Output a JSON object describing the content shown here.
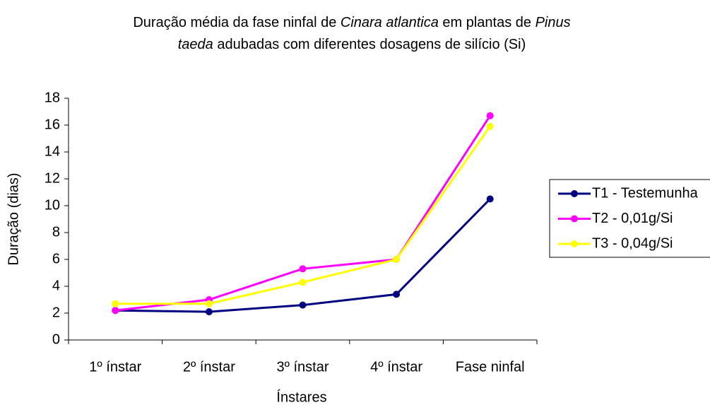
{
  "chart_data": {
    "type": "line",
    "title": [
      [
        {
          "text": "Duração média da fase ninfal de ",
          "italic": false
        },
        {
          "text": "Cinara atlantica",
          "italic": true
        },
        {
          "text": " em plantas de ",
          "italic": false
        },
        {
          "text": "Pinus",
          "italic": true
        }
      ],
      [
        {
          "text": "taeda",
          "italic": true
        },
        {
          "text": " adubadas com diferentes dosagens de silício (Si)",
          "italic": false
        }
      ]
    ],
    "x_label": "Ínstares",
    "y_label": "Duração (dias)",
    "categories": [
      "1º ínstar",
      "2º ínstar",
      "3º ínstar",
      "4º ínstar",
      "Fase ninfal"
    ],
    "series": [
      {
        "name": "T1 - Testemunha",
        "color": "#000080",
        "values": [
          2.2,
          2.1,
          2.6,
          3.4,
          10.5
        ]
      },
      {
        "name": "T2 - 0,01g/Si",
        "color": "#ff00ff",
        "values": [
          2.2,
          3.0,
          5.3,
          6.0,
          16.7
        ]
      },
      {
        "name": "T3 - 0,04g/Si",
        "color": "#ffff00",
        "values": [
          2.7,
          2.7,
          4.3,
          6.0,
          15.9
        ]
      }
    ],
    "ylim": [
      0,
      18
    ],
    "yticks": [
      0,
      2,
      4,
      6,
      8,
      10,
      12,
      14,
      16,
      18
    ],
    "grid": false,
    "legend": "right"
  }
}
